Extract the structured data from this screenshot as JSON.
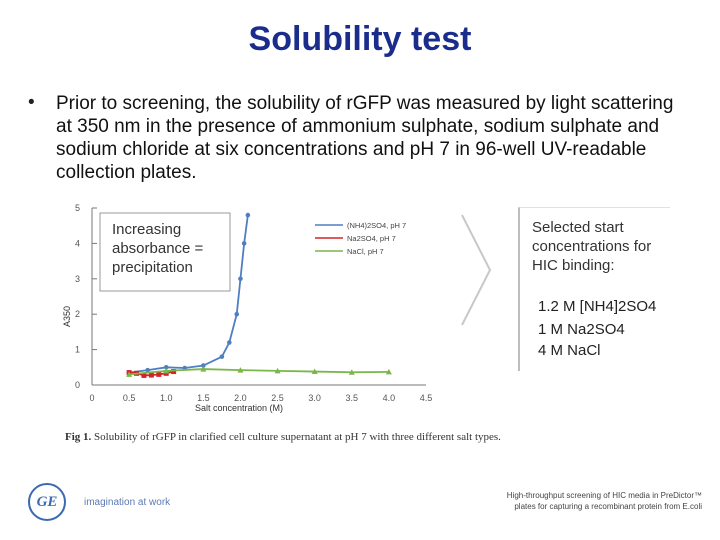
{
  "slide": {
    "title": "Solubility test",
    "bullet": "Prior to screening, the solubility of rGFP was measured by light scattering at 350 nm in the presence of ammonium sulphate, sodium sulphate and sodium chloride at six concentrations and pH 7 in 96-well UV-readable collection plates.",
    "bullet_marker": "•"
  },
  "chart_data": {
    "type": "line",
    "xlabel": "Salt concentration (M)",
    "ylabel": "A350",
    "xlim": [
      0,
      4.5
    ],
    "ylim": [
      0,
      5
    ],
    "x_ticks": [
      "0",
      "0.5",
      "1.0",
      "1.5",
      "2.0",
      "2.5",
      "3.0",
      "3.5",
      "4.0",
      "4.5"
    ],
    "y_ticks": [
      "0",
      "1",
      "2",
      "3",
      "4",
      "5"
    ],
    "annotation": [
      "Increasing",
      "absorbance =",
      "precipitation"
    ],
    "grid": false,
    "legend_position": "top-right",
    "series": [
      {
        "name": "(NH4)2SO4, pH 7",
        "color": "#4f7fc0",
        "x": [
          0.5,
          0.75,
          1.0,
          1.25,
          1.5,
          1.75,
          1.85,
          1.95,
          2.0,
          2.05,
          2.1
        ],
        "y": [
          0.35,
          0.42,
          0.5,
          0.48,
          0.55,
          0.8,
          1.2,
          2.0,
          3.0,
          4.0,
          4.8
        ]
      },
      {
        "name": "Na2SO4, pH 7",
        "color": "#d2232a",
        "x": [
          0.5,
          0.6,
          0.7,
          0.8,
          0.9,
          1.0,
          1.1
        ],
        "y": [
          0.35,
          0.33,
          0.27,
          0.28,
          0.3,
          0.33,
          0.38
        ]
      },
      {
        "name": "NaCl, pH 7",
        "color": "#7ab648",
        "x": [
          0.5,
          1.0,
          1.5,
          2.0,
          2.5,
          3.0,
          3.5,
          4.0
        ],
        "y": [
          0.3,
          0.4,
          0.45,
          0.42,
          0.4,
          0.38,
          0.36,
          0.37
        ]
      }
    ]
  },
  "side_panel": {
    "title": "Selected start concentrations for HIC binding:",
    "items": [
      "1.2 M [NH4]2SO4",
      "1 M Na2SO4",
      "4 M NaCl"
    ]
  },
  "caption": {
    "label": "Fig 1.",
    "text": "Solubility of rGFP in clarified cell culture supernatant at pH 7 with three different salt types."
  },
  "footer": {
    "logo_text": "GE",
    "tagline": "imagination at work",
    "reference": "High-throughput screening of HIC media in PreDictor™ plates for capturing a recombinant protein from E.coli"
  }
}
